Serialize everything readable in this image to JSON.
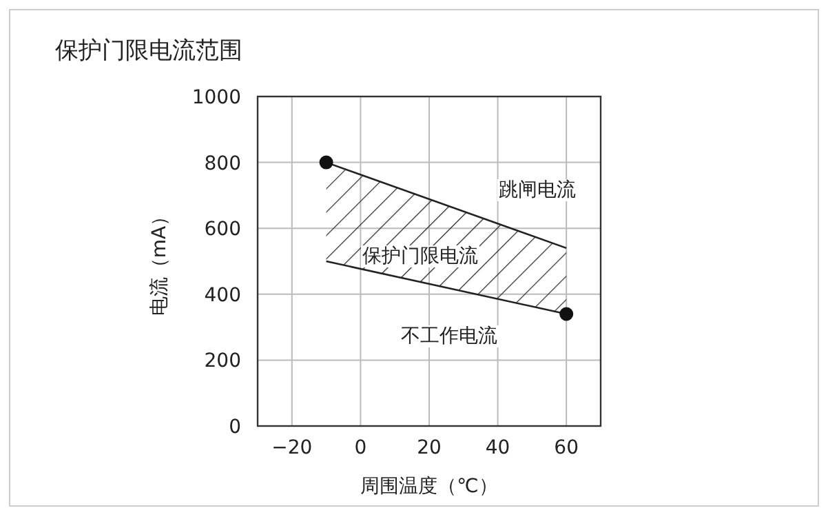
{
  "chart_data": {
    "type": "line",
    "title": "保护门限电流范围",
    "xlabel": "周围温度（℃）",
    "ylabel": "电流（mA）",
    "xlim": [
      -30,
      70
    ],
    "xticks": [
      {
        "value": -20,
        "label": "−20"
      },
      0,
      20,
      40,
      60
    ],
    "ylim": [
      0,
      1000
    ],
    "yticks": [
      0,
      200,
      400,
      600,
      800,
      1000
    ],
    "grid": true,
    "x": [
      -10,
      60
    ],
    "series": [
      {
        "color": "#222222",
        "values": [
          800,
          540
        ]
      },
      {
        "color": "#222222",
        "values": [
          500,
          340
        ]
      },
      {
        "type": "scatter",
        "color": "#111111",
        "values": [
          800,
          340
        ],
        "marker": "circle"
      }
    ],
    "annotations": [
      "跳闸电流",
      "保护门限电流",
      "不工作电流"
    ]
  }
}
